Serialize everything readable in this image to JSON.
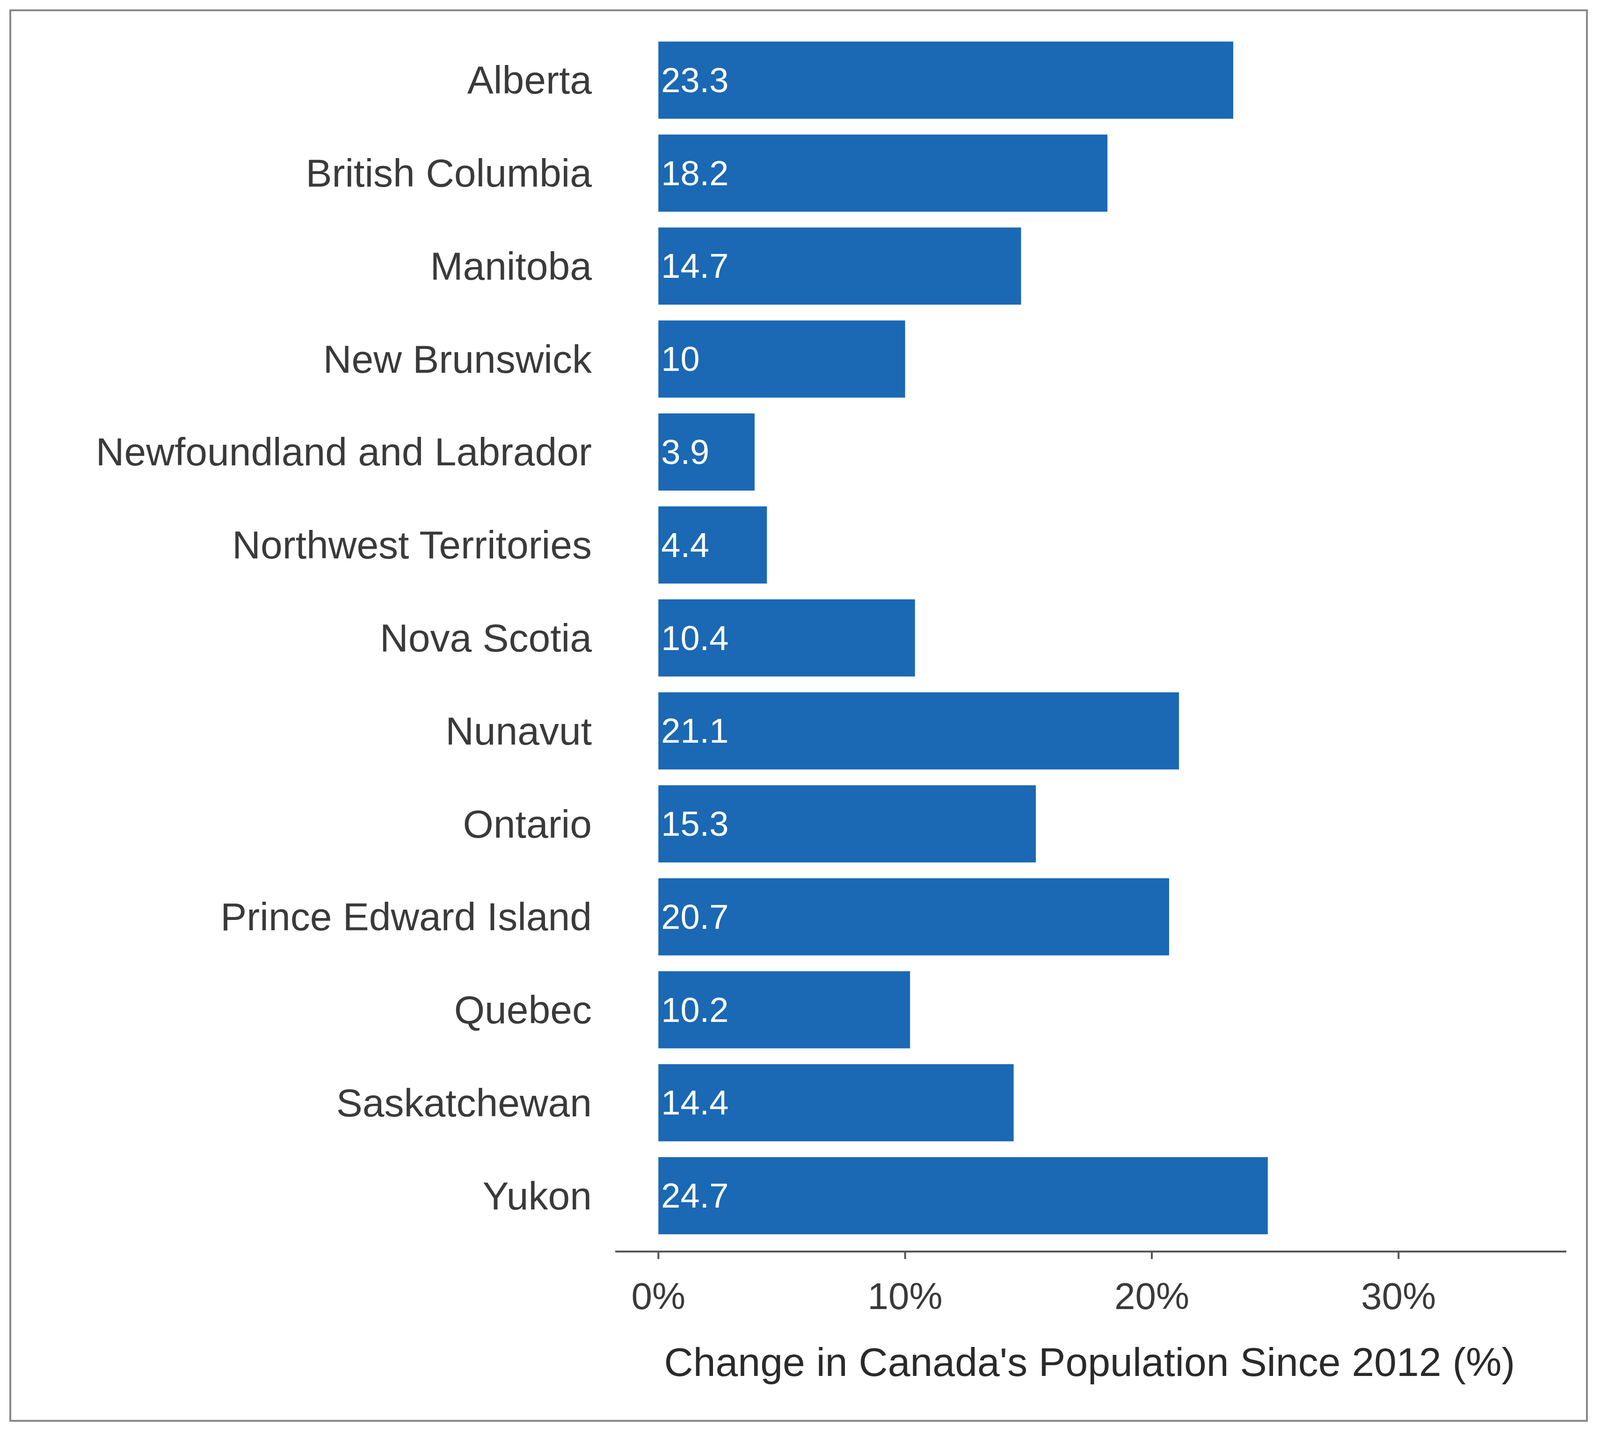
{
  "chart_data": {
    "type": "bar",
    "orientation": "horizontal",
    "x_label": "Change in Canada's Population Since 2012 (%)",
    "categories": [
      "Alberta",
      "British Columbia",
      "Manitoba",
      "New Brunswick",
      "Newfoundland and Labrador",
      "Northwest Territories",
      "Nova Scotia",
      "Nunavut",
      "Ontario",
      "Prince Edward Island",
      "Quebec",
      "Saskatchewan",
      "Yukon"
    ],
    "values": [
      23.3,
      18.2,
      14.7,
      10,
      3.9,
      4.4,
      10.4,
      21.1,
      15.3,
      20.7,
      10.2,
      14.4,
      24.7
    ],
    "color": "#1b68b4",
    "xlim": [
      -1.75,
      36.8
    ],
    "xticks": [
      {
        "value": 0,
        "label": "0%"
      },
      {
        "value": 10,
        "label": "10%"
      },
      {
        "value": 20,
        "label": "20%"
      },
      {
        "value": 30,
        "label": "30%"
      }
    ],
    "data_labels": true,
    "grid": false
  }
}
